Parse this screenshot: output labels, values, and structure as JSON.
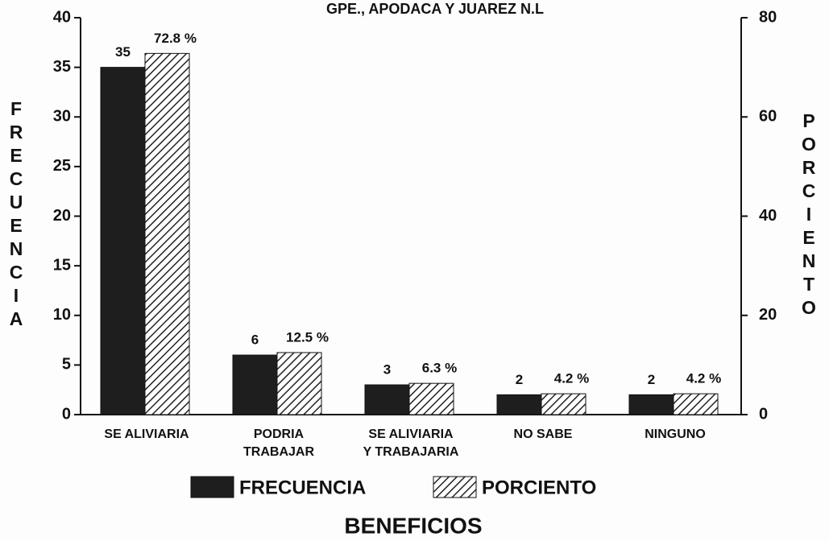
{
  "chart_data": {
    "type": "bar",
    "title": "GPE., APODACA Y JUAREZ N.L",
    "ylabel": "FRECUENCIA",
    "y2label": "PORCIENTO",
    "xlabel": "BENEFICIOS",
    "categories": [
      [
        "SE ALIVIARIA"
      ],
      [
        "PODRIA",
        "TRABAJAR"
      ],
      [
        "SE ALIVIARIA",
        "Y TRABAJARIA"
      ],
      [
        "NO SABE"
      ],
      [
        "NINGUNO"
      ]
    ],
    "series": [
      {
        "name": "FRECUENCIA",
        "color": "#1e1e1e",
        "values": [
          35,
          6,
          3,
          2,
          2
        ]
      },
      {
        "name": "PORCIENTO",
        "color": "#222222",
        "axis": "y2",
        "values": [
          72.8,
          12.5,
          6.3,
          4.2,
          4.2
        ],
        "value_labels": [
          "72.8 %",
          "12.5 %",
          "6.3 %",
          "4.2 %",
          "4.2 %"
        ]
      }
    ],
    "ylim": [
      0,
      40
    ],
    "yticks": [
      0,
      5,
      10,
      15,
      20,
      25,
      30,
      35,
      40
    ],
    "y2lim": [
      0,
      80
    ],
    "y2ticks": [
      0,
      20,
      40,
      60,
      80
    ]
  }
}
